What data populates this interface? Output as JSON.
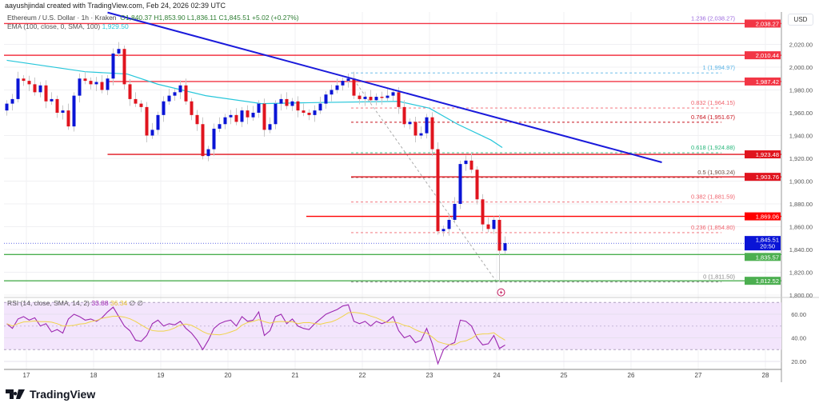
{
  "header": {
    "credit": "aayushjindal created with TradingView.com, Feb 24, 2026 02:39 UTC",
    "symbol": "Ethereum / U.S. Dollar · 1h · Kraken",
    "ohlc": "O1,840.37 H1,853.90 L1,836.11 C1,845.51 +5.02 (+0.27%)",
    "ema_label": "EMA (100, close, 0, SMA, 100)",
    "ema_value": "1,929.50"
  },
  "rsi_legend": {
    "label": "RSI (14, close, SMA, 14, 2)",
    "rsi": "33.88",
    "sma": "36.34",
    "extra": "∅ ∅"
  },
  "axis": {
    "currency": "USD",
    "brand": "TradingView"
  },
  "colors": {
    "up": "#0a14d6",
    "down": "#e0141e",
    "ema": "#26c6da",
    "trend": "#1a1adb",
    "rsi": "#9c27b0",
    "rsi_sma": "#f0d34a",
    "support": "#4caf50",
    "resistance": "#f23645"
  },
  "chart_data": {
    "type": "candlestick",
    "title": "Ethereum / U.S. Dollar · 1h · Kraken",
    "ylim": [
      1790,
      2045
    ],
    "y_ticks": [
      2020,
      2000,
      1980,
      1960,
      1940,
      1920,
      1900,
      1880,
      1860,
      1840,
      1820,
      1800
    ],
    "y_tick_labels": [
      "2,020.00",
      "2,000.00",
      "1,980.00",
      "1,960.00",
      "1,940.00",
      "1,920.00",
      "1,900.00",
      "1,880.00",
      "1,860.00",
      "1,840.00",
      "1,820.00",
      "1,800.00"
    ],
    "x_ticks": [
      "17",
      "18",
      "19",
      "20",
      "21",
      "22",
      "23",
      "24",
      "25",
      "26",
      "27",
      "28"
    ],
    "x_range": [
      "2026-02-16T16:00",
      "2026-02-28T22:00"
    ],
    "candle_interval_hours": 2,
    "first_candle": "2026-02-16T17:00",
    "closes": [
      1968,
      1972,
      1990,
      1988,
      1985,
      1978,
      1984,
      1970,
      1972,
      1960,
      1962,
      1948,
      1975,
      1990,
      1988,
      1985,
      1987,
      1980,
      1990,
      2012,
      2016,
      1985,
      1972,
      1968,
      1965,
      1940,
      1945,
      1958,
      1970,
      1975,
      1978,
      1984,
      1970,
      1958,
      1950,
      1922,
      1928,
      1946,
      1950,
      1956,
      1958,
      1952,
      1962,
      1956,
      1960,
      1968,
      1945,
      1950,
      1968,
      1972,
      1966,
      1970,
      1962,
      1960,
      1958,
      1962,
      1968,
      1976,
      1980,
      1984,
      1988,
      1990,
      1975,
      1972,
      1974,
      1971,
      1974,
      1973,
      1975,
      1978,
      1965,
      1950,
      1952,
      1940,
      1942,
      1956,
      1928,
      1856,
      1858,
      1866,
      1880,
      1915,
      1918,
      1910,
      1884,
      1862,
      1858,
      1866,
      1839,
      1845.51
    ],
    "first_open": 1962,
    "low_overrides": {
      "88": 1811.5
    },
    "ema": {
      "dates": [
        "2026-02-16T17:00",
        "2026-02-17T21:00",
        "2026-02-18T12:00",
        "2026-02-18T23:00",
        "2026-02-19T16:00",
        "2026-02-20T12:00",
        "2026-02-21T09:00",
        "2026-02-22T13:00",
        "2026-02-23T00:00",
        "2026-02-23T10:00",
        "2026-02-23T22:00",
        "2026-02-24T02:00"
      ],
      "values": [
        2006,
        1996,
        1994,
        1985,
        1975,
        1968,
        1969,
        1970,
        1964,
        1950,
        1936,
        1929.5
      ]
    },
    "trendline": {
      "dates": [
        "2026-02-18T05:00",
        "2026-02-26T11:00"
      ],
      "values": [
        2048,
        1916.5
      ]
    },
    "horizontal_levels": [
      {
        "price": 2038.27,
        "label": "2,038.27",
        "from": "2026-02-16T16:00",
        "color": "#f23645",
        "style": "solid",
        "hide_tag": true
      },
      {
        "price": 2010.44,
        "label": "2,010.44",
        "from": "2026-02-16T16:00",
        "color": "#f23645",
        "style": "solid"
      },
      {
        "price": 1987.42,
        "label": "1,987.42",
        "from": "2026-02-18T05:00",
        "color": "#f23645",
        "style": "solid"
      },
      {
        "price": 1923.48,
        "label": "1,923.48",
        "from": "2026-02-18T05:00",
        "color": "#e0141e",
        "style": "solid"
      },
      {
        "price": 1903.76,
        "label": "1,903.76",
        "from": "2026-02-21T20:00",
        "color": "#e0141e",
        "style": "solid"
      },
      {
        "price": 1869.06,
        "label": "1,869.06",
        "from": "2026-02-21T04:00",
        "color": "#f00",
        "style": "solid"
      },
      {
        "price": 1835.57,
        "label": "1,835.57",
        "from": "2026-02-16T16:00",
        "color": "#4caf50",
        "style": "solid"
      },
      {
        "price": 1812.52,
        "label": "1,812.52",
        "from": "2026-02-16T16:00",
        "color": "#4caf50",
        "style": "solid"
      }
    ],
    "fib_levels": [
      {
        "ratio": "1.236",
        "price": 2038.27,
        "label": "1.236 (2,038.27)",
        "color": "#9c6ade"
      },
      {
        "ratio": "1",
        "price": 1994.97,
        "label": "1 (1,994.97)",
        "color": "#5ab4e6"
      },
      {
        "ratio": "0.832",
        "price": 1964.15,
        "label": "0.832 (1,964.15)",
        "color": "#f0646e"
      },
      {
        "ratio": "0.764",
        "price": 1951.67,
        "label": "0.764 (1,951.67)",
        "color": "#c8141e"
      },
      {
        "ratio": "0.618",
        "price": 1924.88,
        "label": "0.618 (1,924.88)",
        "color": "#26b67a"
      },
      {
        "ratio": "0.5",
        "price": 1903.24,
        "label": "0.5 (1,903.24)",
        "color": "#6d4c41"
      },
      {
        "ratio": "0.382",
        "price": 1881.59,
        "label": "0.382 (1,881.59)",
        "color": "#f0646e"
      },
      {
        "ratio": "0.236",
        "price": 1854.8,
        "label": "0.236 (1,854.80)",
        "color": "#f0646e"
      },
      {
        "ratio": "0",
        "price": 1811.5,
        "label": "0 (1,811.50)",
        "color": "#888888"
      }
    ],
    "fib_from": "2026-02-21T20:00",
    "fib_diagonal": {
      "dates": [
        "2026-02-21T21:00",
        "2026-02-24T00:00"
      ],
      "values": [
        1989,
        1811.5
      ]
    },
    "current_price": {
      "label": "1,845.51",
      "countdown": "20:50",
      "price": 1845.51
    },
    "rsi": {
      "ylim": [
        10,
        78
      ],
      "ticks": [
        60,
        40,
        20
      ],
      "tick_labels": [
        "60.00",
        "40.00",
        "20.00"
      ],
      "bands": [
        70,
        30
      ],
      "values": [
        52,
        48,
        56,
        58,
        55,
        57,
        50,
        52,
        45,
        47,
        44,
        56,
        60,
        58,
        55,
        56,
        54,
        57,
        62,
        66,
        58,
        50,
        46,
        38,
        37,
        42,
        52,
        55,
        50,
        52,
        51,
        54,
        48,
        44,
        38,
        30,
        38,
        48,
        52,
        54,
        55,
        50,
        58,
        54,
        55,
        62,
        42,
        46,
        58,
        60,
        52,
        56,
        50,
        48,
        47,
        52,
        56,
        60,
        62,
        64,
        67,
        68,
        54,
        52,
        54,
        50,
        54,
        52,
        54,
        58,
        46,
        40,
        42,
        36,
        38,
        48,
        35,
        18,
        30,
        34,
        36,
        55,
        54,
        50,
        40,
        34,
        35,
        42,
        31,
        33.88
      ]
    }
  }
}
